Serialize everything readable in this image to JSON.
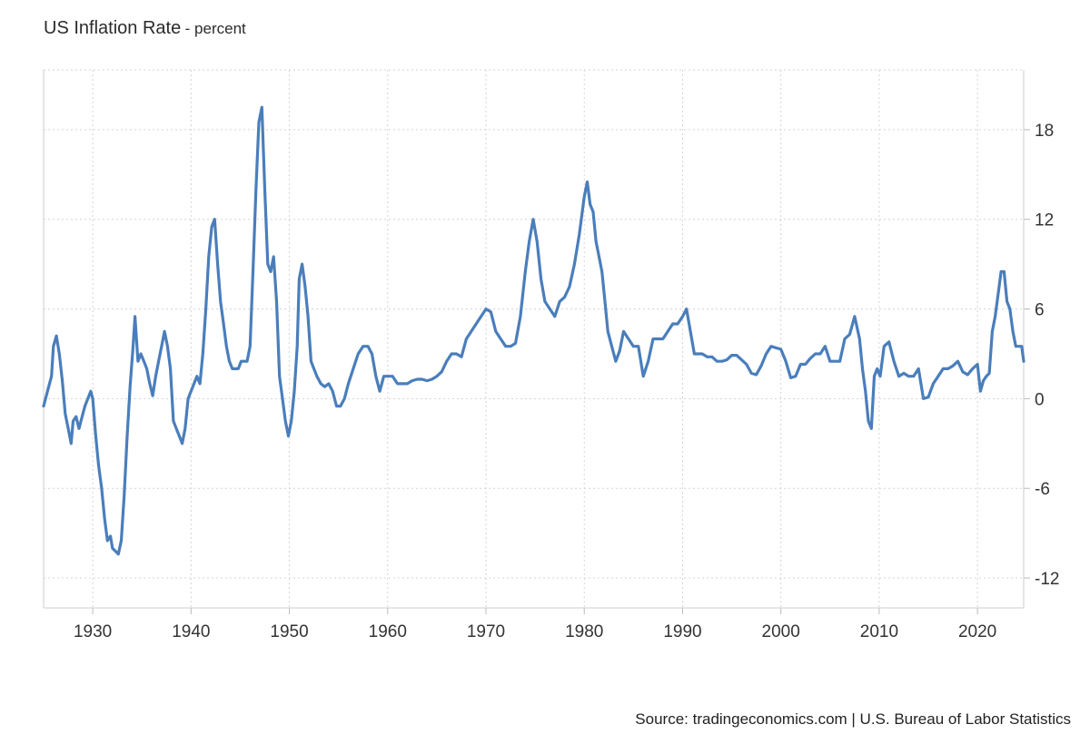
{
  "chart_data": {
    "type": "line",
    "title": "US Inflation Rate",
    "subtitle": "- percent",
    "source": "Source: tradingeconomics.com | U.S. Bureau of Labor Statistics",
    "xlim": [
      1925,
      2024.7
    ],
    "ylim": [
      -14,
      22
    ],
    "x_ticks": [
      1930,
      1940,
      1950,
      1960,
      1970,
      1980,
      1990,
      2000,
      2010,
      2020
    ],
    "y_ticks": [
      18,
      12,
      6,
      0,
      -6,
      -12
    ],
    "grid": true,
    "y_axis_position": "right",
    "line_color": "#4a7ebb",
    "series": [
      {
        "x": [
          1925.0,
          1925.4,
          1925.8,
          1926.0,
          1926.3,
          1926.6,
          1926.9,
          1927.2,
          1927.5,
          1927.8,
          1928.0,
          1928.3,
          1928.6,
          1928.8,
          1929.2,
          1929.5,
          1929.8,
          1930.0,
          1930.3,
          1930.6,
          1930.9,
          1931.2,
          1931.5,
          1931.8,
          1932.0,
          1932.3,
          1932.6,
          1932.9,
          1933.2,
          1933.5,
          1933.8,
          1934.1,
          1934.3,
          1934.6,
          1934.9,
          1935.2,
          1935.5,
          1935.8,
          1936.1,
          1936.4,
          1936.7,
          1937.0,
          1937.3,
          1937.6,
          1937.9,
          1938.2,
          1938.5,
          1938.8,
          1939.1,
          1939.4,
          1939.7,
          1940.0,
          1940.3,
          1940.6,
          1940.9,
          1941.2,
          1941.5,
          1941.8,
          1942.1,
          1942.4,
          1942.7,
          1943.0,
          1943.3,
          1943.6,
          1943.9,
          1944.2,
          1944.5,
          1944.8,
          1945.1,
          1945.4,
          1945.7,
          1946.0,
          1946.3,
          1946.6,
          1946.9,
          1947.2,
          1947.5,
          1947.8,
          1948.1,
          1948.4,
          1948.7,
          1949.0,
          1949.3,
          1949.6,
          1949.9,
          1950.2,
          1950.5,
          1950.8,
          1951.0,
          1951.3,
          1951.6,
          1951.9,
          1952.2,
          1952.5,
          1952.8,
          1953.2,
          1953.6,
          1954.0,
          1954.4,
          1954.8,
          1955.2,
          1955.6,
          1956.0,
          1956.5,
          1957.0,
          1957.5,
          1958.0,
          1958.4,
          1958.8,
          1959.2,
          1959.6,
          1960.0,
          1960.5,
          1961.0,
          1961.5,
          1962.0,
          1962.5,
          1963.0,
          1963.5,
          1964.0,
          1964.5,
          1965.0,
          1965.5,
          1966.0,
          1966.5,
          1967.0,
          1967.5,
          1968.0,
          1968.5,
          1969.0,
          1969.5,
          1970.0,
          1970.5,
          1971.0,
          1971.5,
          1972.0,
          1972.5,
          1973.0,
          1973.5,
          1974.0,
          1974.4,
          1974.8,
          1975.2,
          1975.6,
          1976.0,
          1976.5,
          1977.0,
          1977.5,
          1978.0,
          1978.5,
          1979.0,
          1979.5,
          1980.0,
          1980.3,
          1980.6,
          1980.9,
          1981.2,
          1981.5,
          1981.8,
          1982.1,
          1982.4,
          1982.8,
          1983.2,
          1983.6,
          1984.0,
          1984.5,
          1985.0,
          1985.5,
          1986.0,
          1986.5,
          1987.0,
          1987.5,
          1988.0,
          1988.5,
          1989.0,
          1989.5,
          1990.0,
          1990.4,
          1990.8,
          1991.2,
          1991.6,
          1992.0,
          1992.5,
          1993.0,
          1993.5,
          1994.0,
          1994.5,
          1995.0,
          1995.5,
          1996.0,
          1996.5,
          1997.0,
          1997.5,
          1998.0,
          1998.5,
          1999.0,
          1999.5,
          2000.0,
          2000.5,
          2001.0,
          2001.5,
          2002.0,
          2002.5,
          2003.0,
          2003.5,
          2004.0,
          2004.5,
          2005.0,
          2005.5,
          2006.0,
          2006.5,
          2007.0,
          2007.5,
          2008.0,
          2008.3,
          2008.6,
          2008.9,
          2009.2,
          2009.5,
          2009.8,
          2010.1,
          2010.5,
          2011.0,
          2011.5,
          2012.0,
          2012.5,
          2013.0,
          2013.5,
          2014.0,
          2014.5,
          2015.0,
          2015.5,
          2016.0,
          2016.5,
          2017.0,
          2017.5,
          2018.0,
          2018.5,
          2019.0,
          2019.5,
          2020.0,
          2020.3,
          2020.6,
          2020.9,
          2021.2,
          2021.5,
          2021.8,
          2022.1,
          2022.4,
          2022.7,
          2023.0,
          2023.3,
          2023.6,
          2023.9,
          2024.2,
          2024.5,
          2024.7
        ],
        "y": [
          -0.5,
          0.5,
          1.5,
          3.5,
          4.2,
          3.0,
          1.2,
          -1.0,
          -2.0,
          -3.0,
          -1.5,
          -1.2,
          -2.0,
          -1.5,
          -0.5,
          0.0,
          0.5,
          0.0,
          -2.5,
          -4.5,
          -6.0,
          -8.0,
          -9.5,
          -9.2,
          -10.0,
          -10.2,
          -10.4,
          -9.5,
          -6.5,
          -2.5,
          0.8,
          3.5,
          5.5,
          2.5,
          3.0,
          2.5,
          2.0,
          1.0,
          0.2,
          1.5,
          2.5,
          3.5,
          4.5,
          3.5,
          2.0,
          -1.5,
          -2.0,
          -2.5,
          -3.0,
          -2.0,
          0.0,
          0.5,
          1.0,
          1.5,
          1.0,
          3.0,
          6.0,
          9.5,
          11.5,
          12.0,
          9.0,
          6.5,
          5.0,
          3.5,
          2.5,
          2.0,
          2.0,
          2.0,
          2.5,
          2.5,
          2.5,
          3.5,
          8.5,
          14.0,
          18.5,
          19.5,
          14.0,
          9.0,
          8.5,
          9.5,
          6.5,
          1.5,
          0.0,
          -1.5,
          -2.5,
          -1.5,
          0.5,
          3.5,
          8.0,
          9.0,
          7.5,
          5.5,
          2.5,
          2.0,
          1.5,
          1.0,
          0.8,
          1.0,
          0.5,
          -0.5,
          -0.5,
          0.0,
          1.0,
          2.0,
          3.0,
          3.5,
          3.5,
          3.0,
          1.5,
          0.5,
          1.5,
          1.5,
          1.5,
          1.0,
          1.0,
          1.0,
          1.2,
          1.3,
          1.3,
          1.2,
          1.3,
          1.5,
          1.8,
          2.5,
          3.0,
          3.0,
          2.8,
          4.0,
          4.5,
          5.0,
          5.5,
          6.0,
          5.8,
          4.5,
          4.0,
          3.5,
          3.5,
          3.7,
          5.5,
          8.5,
          10.5,
          12.0,
          10.5,
          8.0,
          6.5,
          6.0,
          5.5,
          6.5,
          6.8,
          7.5,
          9.0,
          11.0,
          13.5,
          14.5,
          13.0,
          12.5,
          10.5,
          9.5,
          8.5,
          6.5,
          4.5,
          3.5,
          2.5,
          3.2,
          4.5,
          4.0,
          3.5,
          3.5,
          1.5,
          2.5,
          4.0,
          4.0,
          4.0,
          4.5,
          5.0,
          5.0,
          5.5,
          6.0,
          4.5,
          3.0,
          3.0,
          3.0,
          2.8,
          2.8,
          2.5,
          2.5,
          2.6,
          2.9,
          2.9,
          2.6,
          2.3,
          1.7,
          1.6,
          2.2,
          3.0,
          3.5,
          3.4,
          3.3,
          2.5,
          1.4,
          1.5,
          2.3,
          2.3,
          2.7,
          3.0,
          3.0,
          3.5,
          2.5,
          2.5,
          2.5,
          4.0,
          4.3,
          5.5,
          4.0,
          2.0,
          0.5,
          -1.5,
          -2.0,
          1.5,
          2.0,
          1.5,
          3.5,
          3.8,
          2.5,
          1.5,
          1.7,
          1.5,
          1.5,
          2.0,
          0.0,
          0.1,
          1.0,
          1.5,
          2.0,
          2.0,
          2.2,
          2.5,
          1.8,
          1.6,
          2.0,
          2.3,
          0.5,
          1.2,
          1.5,
          1.7,
          4.5,
          5.5,
          7.0,
          8.5,
          8.5,
          6.5,
          6.0,
          4.5,
          3.5,
          3.5,
          3.5,
          2.5
        ]
      }
    ]
  }
}
